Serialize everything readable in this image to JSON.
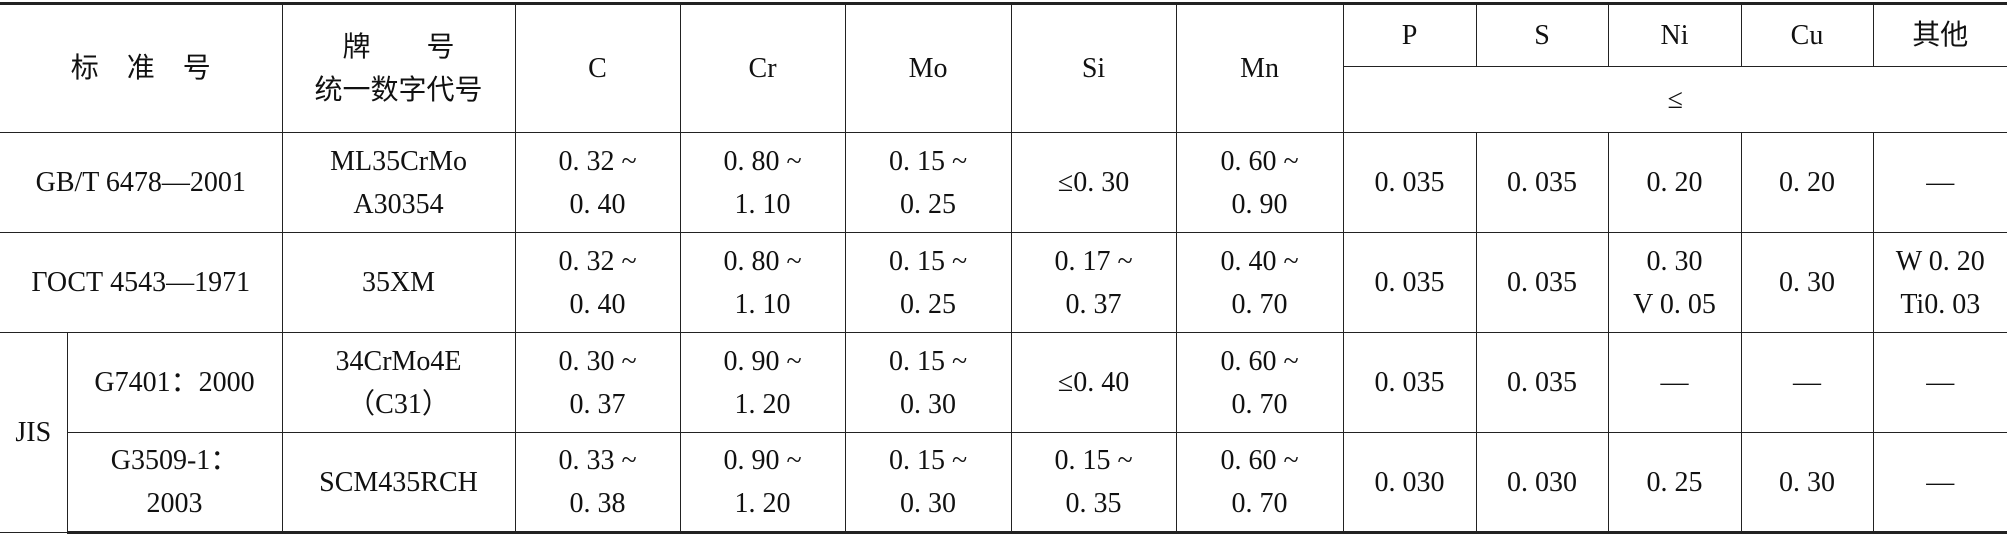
{
  "header": {
    "standard": "标　准　号",
    "grade": [
      "牌　　号",
      "统一数字代号"
    ],
    "columns": [
      "C",
      "Cr",
      "Mo",
      "Si",
      "Mn",
      "P",
      "S",
      "Ni",
      "Cu",
      "其他"
    ],
    "limit": "≤"
  },
  "rows": [
    {
      "standard": [
        "GB/T 6478—2001"
      ],
      "grade": [
        "ML35CrMo",
        "A30354"
      ],
      "cells": [
        [
          "0. 32 ~",
          "0. 40"
        ],
        [
          "0. 80 ~",
          "1. 10"
        ],
        [
          "0. 15 ~",
          "0. 25"
        ],
        [
          "≤0. 30"
        ],
        [
          "0. 60 ~",
          "0. 90"
        ],
        [
          "0. 035"
        ],
        [
          "0. 035"
        ],
        [
          "0. 20"
        ],
        [
          "0. 20"
        ],
        [
          "—"
        ]
      ]
    },
    {
      "standard": [
        "ГОСТ 4543—1971"
      ],
      "grade": [
        "35XM"
      ],
      "cells": [
        [
          "0. 32 ~",
          "0. 40"
        ],
        [
          "0. 80 ~",
          "1. 10"
        ],
        [
          "0. 15 ~",
          "0. 25"
        ],
        [
          "0. 17 ~",
          "0. 37"
        ],
        [
          "0. 40 ~",
          "0. 70"
        ],
        [
          "0. 035"
        ],
        [
          "0. 035"
        ],
        [
          "0. 30",
          "V 0. 05"
        ],
        [
          "0. 30"
        ],
        [
          "W 0. 20",
          "Ti0. 03"
        ]
      ]
    },
    {
      "group": "JIS",
      "standard": [
        "G7401：2000"
      ],
      "grade": [
        "34CrMo4E",
        "（C31）"
      ],
      "cells": [
        [
          "0. 30 ~",
          "0. 37"
        ],
        [
          "0. 90 ~",
          "1. 20"
        ],
        [
          "0. 15 ~",
          "0. 30"
        ],
        [
          "≤0. 40"
        ],
        [
          "0. 60 ~",
          "0. 70"
        ],
        [
          "0. 035"
        ],
        [
          "0. 035"
        ],
        [
          "—"
        ],
        [
          "—"
        ],
        [
          "—"
        ]
      ]
    },
    {
      "standard": [
        "G3509-1：",
        "2003"
      ],
      "grade": [
        "SCM435RCH"
      ],
      "cells": [
        [
          "0. 33 ~",
          "0. 38"
        ],
        [
          "0. 90 ~",
          "1. 20"
        ],
        [
          "0. 15 ~",
          "0. 30"
        ],
        [
          "0. 15 ~",
          "0. 35"
        ],
        [
          "0. 60 ~",
          "0. 70"
        ],
        [
          "0. 030"
        ],
        [
          "0. 030"
        ],
        [
          "0. 25"
        ],
        [
          "0. 30"
        ],
        [
          "—"
        ]
      ]
    }
  ]
}
